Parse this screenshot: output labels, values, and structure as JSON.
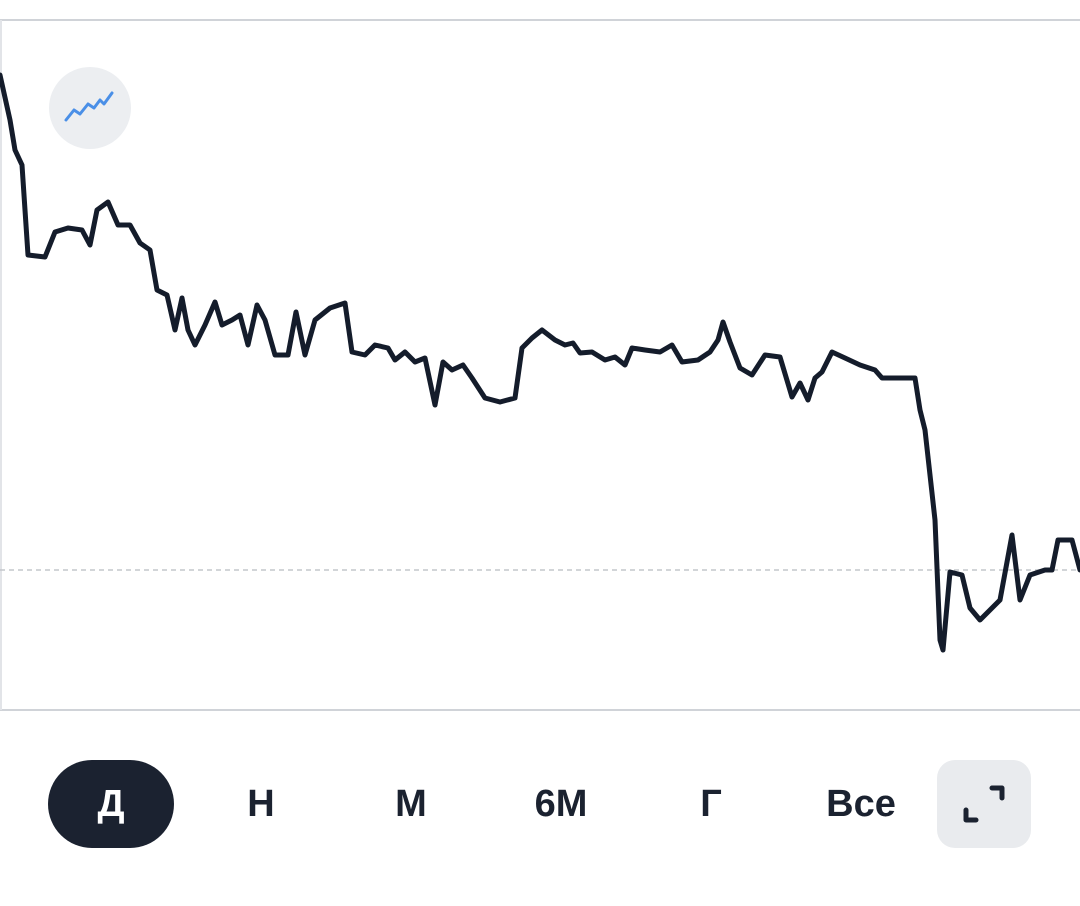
{
  "chart_data": {
    "type": "line",
    "x": [
      0,
      10,
      15,
      22,
      28,
      45,
      55,
      68,
      82,
      90,
      97,
      108,
      118,
      130,
      140,
      150,
      157,
      167,
      175,
      182,
      188,
      195,
      205,
      215,
      222,
      232,
      240,
      248,
      257,
      265,
      275,
      288,
      296,
      305,
      315,
      330,
      345,
      352,
      365,
      375,
      388,
      395,
      405,
      415,
      425,
      435,
      443,
      452,
      463,
      472,
      485,
      500,
      515,
      522,
      532,
      542,
      555,
      565,
      573,
      580,
      592,
      605,
      615,
      625,
      632,
      645,
      660,
      672,
      682,
      698,
      710,
      718,
      723,
      730,
      740,
      752,
      765,
      780,
      792,
      800,
      808,
      815,
      822,
      832,
      845,
      860,
      875,
      882,
      915,
      920,
      925,
      935,
      940,
      943,
      950,
      962,
      970,
      980,
      990,
      1000,
      1012,
      1020,
      1030,
      1045,
      1052,
      1058,
      1072,
      1080
    ],
    "series": [
      {
        "color": "#141c2b",
        "values": [
          635,
          590,
          560,
          545,
          455,
          453,
          478,
          482,
          480,
          465,
          500,
          508,
          485,
          485,
          467,
          460,
          420,
          415,
          380,
          412,
          380,
          365,
          385,
          408,
          385,
          390,
          395,
          365,
          405,
          390,
          355,
          355,
          398,
          355,
          390,
          402,
          407,
          358,
          355,
          365,
          362,
          350,
          358,
          348,
          352,
          305,
          348,
          340,
          345,
          332,
          312,
          308,
          312,
          362,
          372,
          380,
          370,
          365,
          367,
          357,
          358,
          350,
          353,
          345,
          362,
          360,
          358,
          365,
          348,
          350,
          358,
          370,
          388,
          368,
          342,
          335,
          355,
          353,
          313,
          327,
          310,
          332,
          338,
          358,
          352,
          345,
          340,
          332,
          332,
          300,
          280,
          190,
          70,
          60,
          138,
          135,
          102,
          90,
          100,
          110,
          175,
          110,
          135,
          140,
          140,
          170,
          170,
          140
        ]
      }
    ],
    "xlim": [
      0,
      1080
    ],
    "ylim": [
      0,
      690
    ],
    "reference": 140
  },
  "icon_button": {
    "color": "#4a8fe7"
  },
  "ranges": [
    "Д",
    "Н",
    "М",
    "6М",
    "Г",
    "Все"
  ]
}
